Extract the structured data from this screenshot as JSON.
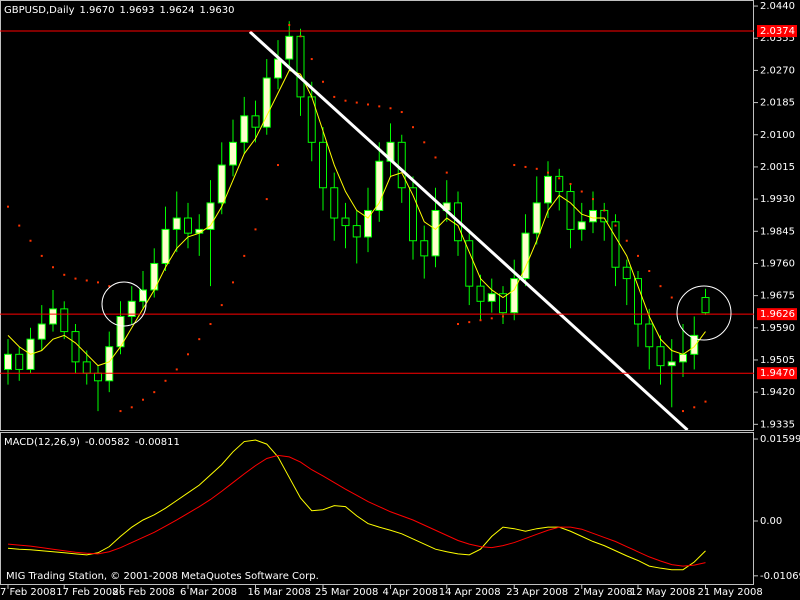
{
  "chart_data": [
    {
      "type": "candlestick",
      "title": "GBPUSD,Daily",
      "header_values": [
        1.967,
        1.9693,
        1.9624,
        1.963
      ],
      "header_value_labels": [
        "1.9670",
        "1.9693",
        "1.9624",
        "1.9630"
      ],
      "bull_color": "#ffffcc",
      "bear_color": "#000000",
      "wick_color": "#00ff00",
      "ohlc": [
        [
          1.948,
          1.956,
          1.944,
          1.952
        ],
        [
          1.952,
          1.954,
          1.945,
          1.948
        ],
        [
          1.948,
          1.959,
          1.947,
          1.956
        ],
        [
          1.956,
          1.965,
          1.953,
          1.96
        ],
        [
          1.96,
          1.969,
          1.958,
          1.964
        ],
        [
          1.964,
          1.966,
          1.956,
          1.958
        ],
        [
          1.958,
          1.96,
          1.947,
          1.95
        ],
        [
          1.95,
          1.953,
          1.944,
          1.947
        ],
        [
          1.947,
          1.949,
          1.937,
          1.945
        ],
        [
          1.945,
          1.958,
          1.942,
          1.954
        ],
        [
          1.954,
          1.966,
          1.952,
          1.962
        ],
        [
          1.962,
          1.97,
          1.96,
          1.966
        ],
        [
          1.966,
          1.974,
          1.964,
          1.969
        ],
        [
          1.969,
          1.98,
          1.967,
          1.976
        ],
        [
          1.976,
          1.991,
          1.974,
          1.985
        ],
        [
          1.985,
          1.995,
          1.979,
          1.988
        ],
        [
          1.988,
          1.992,
          1.98,
          1.984
        ],
        [
          1.984,
          1.989,
          1.978,
          1.985
        ],
        [
          1.985,
          1.998,
          1.97,
          1.992
        ],
        [
          1.992,
          2.008,
          1.989,
          2.002
        ],
        [
          2.002,
          2.014,
          1.999,
          2.008
        ],
        [
          2.008,
          2.02,
          2.005,
          2.015
        ],
        [
          2.015,
          2.019,
          2.008,
          2.012
        ],
        [
          2.012,
          2.03,
          2.01,
          2.025
        ],
        [
          2.025,
          2.035,
          2.022,
          2.03
        ],
        [
          2.03,
          2.04,
          2.027,
          2.036
        ],
        [
          2.036,
          2.038,
          2.015,
          2.02
        ],
        [
          2.02,
          2.024,
          2.003,
          2.008
        ],
        [
          2.008,
          2.012,
          1.99,
          1.996
        ],
        [
          1.996,
          2.0,
          1.982,
          1.988
        ],
        [
          1.988,
          1.992,
          1.98,
          1.986
        ],
        [
          1.986,
          1.99,
          1.976,
          1.983
        ],
        [
          1.983,
          1.996,
          1.979,
          1.99
        ],
        [
          1.99,
          2.008,
          1.987,
          2.003
        ],
        [
          2.003,
          2.013,
          1.999,
          2.008
        ],
        [
          2.008,
          2.01,
          1.992,
          1.996
        ],
        [
          1.996,
          1.999,
          1.977,
          1.982
        ],
        [
          1.982,
          1.986,
          1.972,
          1.978
        ],
        [
          1.978,
          1.996,
          1.975,
          1.99
        ],
        [
          1.99,
          1.998,
          1.987,
          1.992
        ],
        [
          1.992,
          1.995,
          1.978,
          1.982
        ],
        [
          1.982,
          1.985,
          1.965,
          1.97
        ],
        [
          1.97,
          1.973,
          1.961,
          1.966
        ],
        [
          1.966,
          1.972,
          1.963,
          1.968
        ],
        [
          1.968,
          1.97,
          1.96,
          1.963
        ],
        [
          1.963,
          1.977,
          1.961,
          1.972
        ],
        [
          1.972,
          1.989,
          1.97,
          1.984
        ],
        [
          1.984,
          1.999,
          1.981,
          1.992
        ],
        [
          1.992,
          2.003,
          1.988,
          1.999
        ],
        [
          1.999,
          2.001,
          1.99,
          1.995
        ],
        [
          1.995,
          1.997,
          1.98,
          1.985
        ],
        [
          1.985,
          1.992,
          1.982,
          1.987
        ],
        [
          1.987,
          1.995,
          1.984,
          1.99
        ],
        [
          1.99,
          1.992,
          1.982,
          1.987
        ],
        [
          1.987,
          1.989,
          1.97,
          1.975
        ],
        [
          1.975,
          1.977,
          1.965,
          1.972
        ],
        [
          1.972,
          1.974,
          1.954,
          1.96
        ],
        [
          1.96,
          1.964,
          1.948,
          1.954
        ],
        [
          1.954,
          1.957,
          1.944,
          1.949
        ],
        [
          1.949,
          1.956,
          1.938,
          1.95
        ],
        [
          1.95,
          1.96,
          1.946,
          1.952
        ],
        [
          1.952,
          1.962,
          1.948,
          1.957
        ],
        [
          1.967,
          1.9693,
          1.9624,
          1.963
        ]
      ],
      "ma": {
        "color": "#ffff00",
        "values": [
          1.957,
          1.954,
          1.952,
          1.953,
          1.956,
          1.957,
          1.955,
          1.952,
          1.949,
          1.95,
          1.954,
          1.959,
          1.964,
          1.969,
          1.975,
          1.98,
          1.983,
          1.984,
          1.986,
          1.991,
          1.998,
          2.005,
          2.009,
          2.015,
          2.021,
          2.027,
          2.026,
          2.02,
          2.011,
          2.002,
          1.995,
          1.99,
          1.988,
          1.992,
          1.999,
          2.0,
          1.994,
          1.987,
          1.985,
          1.988,
          1.986,
          1.979,
          1.972,
          1.969,
          1.967,
          1.969,
          1.975,
          1.982,
          1.99,
          1.994,
          1.992,
          1.989,
          1.988,
          1.988,
          1.983,
          1.978,
          1.97,
          1.962,
          1.956,
          1.953,
          1.952,
          1.954,
          1.958
        ]
      },
      "sar": {
        "color": "#ff3300",
        "values": [
          1.991,
          1.986,
          1.982,
          1.978,
          1.975,
          1.973,
          1.972,
          1.9715,
          1.971,
          1.97,
          1.937,
          1.938,
          1.94,
          1.942,
          1.945,
          1.948,
          1.952,
          1.956,
          1.96,
          1.965,
          1.971,
          1.978,
          1.985,
          1.993,
          2.002,
          2.039,
          2.036,
          2.03,
          2.024,
          2.02,
          2.019,
          2.0185,
          2.018,
          2.0175,
          2.017,
          2.016,
          2.012,
          2.008,
          2.004,
          2.0,
          1.96,
          1.9605,
          1.961,
          1.9615,
          1.962,
          2.002,
          2.0015,
          2.001,
          2.0,
          1.9985,
          1.997,
          1.995,
          1.993,
          1.99,
          1.986,
          1.982,
          1.978,
          1.974,
          1.97,
          1.967,
          1.937,
          1.938,
          1.9395
        ]
      },
      "trendline": {
        "color": "#ffffff",
        "x": [
          21.5,
          60.4
        ],
        "y": [
          2.0372,
          1.932
        ]
      },
      "hlines": [
        2.0374,
        1.9626,
        {
          "value": 1.947,
          "label": "1.9470"
        }
      ],
      "hline_color": "#ff0000",
      "ylim": [
        1.932,
        2.0456
      ],
      "yticks": [
        {
          "value": 2.044,
          "label": "2.0440"
        },
        2.0355,
        {
          "value": 2.027,
          "label": "2.0270"
        },
        2.0185,
        {
          "value": 2.01,
          "label": "2.0100"
        },
        2.0015,
        {
          "value": 1.993,
          "label": "1.9930"
        },
        1.9845,
        {
          "value": 1.976,
          "label": "1.9760"
        },
        1.9675,
        {
          "value": 1.959,
          "label": "1.9590"
        },
        1.9505,
        {
          "value": 1.942,
          "label": "1.9420"
        },
        1.9335
      ]
    },
    {
      "type": "line",
      "title": "MACD(12,26,9)",
      "header_values": [
        -0.00582,
        -0.00811
      ],
      "series": [
        {
          "color": "#ffff00",
          "values": [
            -0.0053,
            -0.0055,
            -0.0056,
            -0.0058,
            -0.006,
            -0.0062,
            -0.0064,
            -0.0066,
            -0.0062,
            -0.005,
            -0.003,
            -0.0012,
            0.0002,
            0.0012,
            0.0025,
            0.004,
            0.0055,
            0.007,
            0.009,
            0.011,
            0.0135,
            0.0155,
            0.0158,
            0.015,
            0.0125,
            0.0085,
            0.0045,
            0.002,
            0.0022,
            0.003,
            0.0028,
            0.001,
            -0.0005,
            -0.0012,
            -0.0018,
            -0.0025,
            -0.0035,
            -0.0045,
            -0.0055,
            -0.006,
            -0.0064,
            -0.0066,
            -0.0055,
            -0.003,
            -0.0012,
            -0.0015,
            -0.002,
            -0.0015,
            -0.0012,
            -0.0012,
            -0.002,
            -0.003,
            -0.004,
            -0.0048,
            -0.0058,
            -0.0068,
            -0.0077,
            -0.0088,
            -0.0092,
            -0.0095,
            -0.0095,
            -0.008,
            -0.00582
          ]
        },
        {
          "color": "#ff0000",
          "values": [
            -0.0045,
            -0.0047,
            -0.0049,
            -0.0052,
            -0.0055,
            -0.0058,
            -0.0061,
            -0.0063,
            -0.0064,
            -0.006,
            -0.0052,
            -0.0042,
            -0.0032,
            -0.0022,
            -0.001,
            0.0002,
            0.0015,
            0.0028,
            0.0042,
            0.0058,
            0.0075,
            0.0092,
            0.0108,
            0.0122,
            0.0128,
            0.0125,
            0.0115,
            0.01,
            0.0088,
            0.0075,
            0.0062,
            0.005,
            0.0038,
            0.0028,
            0.0018,
            0.001,
            0.0002,
            -0.0008,
            -0.0018,
            -0.0028,
            -0.0038,
            -0.0045,
            -0.005,
            -0.0052,
            -0.0048,
            -0.0042,
            -0.0034,
            -0.0026,
            -0.0018,
            -0.0012,
            -0.0012,
            -0.0016,
            -0.0024,
            -0.0032,
            -0.004,
            -0.005,
            -0.006,
            -0.007,
            -0.0078,
            -0.0085,
            -0.0088,
            -0.0086,
            -0.00811
          ]
        }
      ],
      "ylim": [
        -0.01248,
        0.01736
      ],
      "yticks": [
        0.01599,
        {
          "value": 0,
          "label": "0.00"
        },
        -0.01069
      ],
      "xticks": [
        {
          "value": 0,
          "label": "7 Feb 2008"
        },
        {
          "value": 5,
          "label": "17 Feb 2008"
        },
        {
          "value": 10,
          "label": "26 Feb 2008"
        },
        {
          "value": 16,
          "label": "6 Mar 2008"
        },
        {
          "value": 22,
          "label": "16 Mar 2008"
        },
        {
          "value": 28,
          "label": "25 Mar 2008"
        },
        {
          "value": 34,
          "label": "4 Apr 2008"
        },
        {
          "value": 39,
          "label": "14 Apr 2008"
        },
        {
          "value": 45,
          "label": "23 Apr 2008"
        },
        {
          "value": 51,
          "label": "2 May 2008"
        },
        {
          "value": 56,
          "label": "12 May 2008"
        },
        {
          "value": 62,
          "label": "21 May 2008"
        }
      ]
    }
  ],
  "footer": "MIG Trading Station, © 2001-2008 MetaQuotes Software Corp."
}
